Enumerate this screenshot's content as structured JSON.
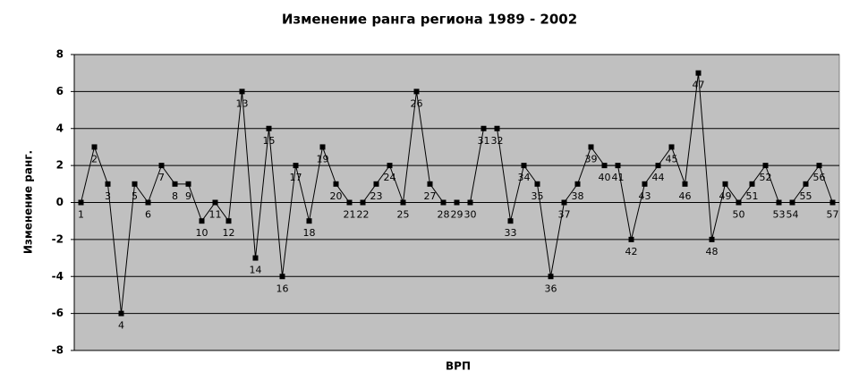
{
  "chart_data": {
    "type": "line",
    "title": "Изменение ранга региона 1989 - 2002",
    "x_label": "ВРП",
    "y_label": "Изменение ранг.",
    "categories": [
      "1",
      "2",
      "3",
      "4",
      "5",
      "6",
      "7",
      "8",
      "9",
      "10",
      "11",
      "12",
      "13",
      "14",
      "15",
      "16",
      "17",
      "18",
      "19",
      "20",
      "21",
      "22",
      "23",
      "24",
      "25",
      "26",
      "27",
      "28",
      "29",
      "30",
      "31",
      "32",
      "33",
      "34",
      "35",
      "36",
      "37",
      "38",
      "39",
      "40",
      "41",
      "42",
      "43",
      "44",
      "45",
      "46",
      "47",
      "48",
      "49",
      "50",
      "51",
      "52",
      "53",
      "54",
      "55",
      "56",
      "57"
    ],
    "values": [
      0,
      3,
      1,
      -6,
      1,
      0,
      2,
      1,
      1,
      -1,
      0,
      -1,
      6,
      -3,
      4,
      -4,
      2,
      -1,
      3,
      1,
      0,
      0,
      1,
      2,
      0,
      6,
      1,
      0,
      0,
      0,
      4,
      4,
      -1,
      2,
      1,
      -4,
      0,
      1,
      3,
      2,
      2,
      -2,
      1,
      2,
      3,
      1,
      7,
      -2,
      1,
      0,
      1,
      2,
      0,
      0,
      1,
      2,
      0
    ],
    "color": "#000000",
    "ylim": [
      -8,
      8
    ],
    "yticks": [
      -8,
      -6,
      -4,
      -2,
      0,
      2,
      4,
      6,
      8
    ],
    "grid": true
  }
}
